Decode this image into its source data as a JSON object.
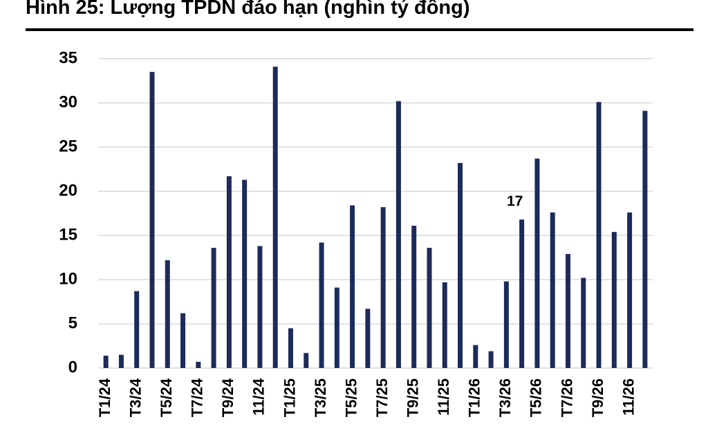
{
  "chart_data": {
    "type": "bar",
    "title": "Hình 25: Lượng TPDN đáo hạn (nghìn tỷ đồng)",
    "categories": [
      "T1/24",
      null,
      "T3/24",
      null,
      "T5/24",
      null,
      "T7/24",
      null,
      "T9/24",
      null,
      "11/24",
      null,
      "T1/25",
      null,
      "T3/25",
      null,
      "T5/25",
      null,
      "T7/25",
      null,
      "T9/25",
      null,
      "11/25",
      null,
      "T1/26",
      null,
      "T3/26",
      null,
      "T5/26",
      null,
      "T7/26",
      null,
      "T9/26",
      null,
      "11/26",
      null
    ],
    "values": [
      1.4,
      1.5,
      8.7,
      33.5,
      12.2,
      6.2,
      0.7,
      13.6,
      21.7,
      21.3,
      13.8,
      34.1,
      4.5,
      1.7,
      14.2,
      9.1,
      18.4,
      6.7,
      18.2,
      30.2,
      16.1,
      13.6,
      9.7,
      23.2,
      2.6,
      1.9,
      9.8,
      16.8,
      23.7,
      17.6,
      12.9,
      10.2,
      30.1,
      15.4,
      17.6,
      29.1
    ],
    "value_labels": [
      null,
      null,
      null,
      null,
      null,
      null,
      null,
      null,
      null,
      null,
      null,
      null,
      null,
      null,
      null,
      null,
      null,
      null,
      null,
      null,
      null,
      null,
      null,
      null,
      null,
      null,
      null,
      "17",
      null,
      null,
      null,
      null,
      null,
      null,
      null,
      null
    ],
    "color": "#1c2b5a",
    "ylim": [
      0,
      35
    ],
    "yticks": [
      0,
      5,
      10,
      15,
      20,
      25,
      30,
      35
    ],
    "grid": true
  }
}
